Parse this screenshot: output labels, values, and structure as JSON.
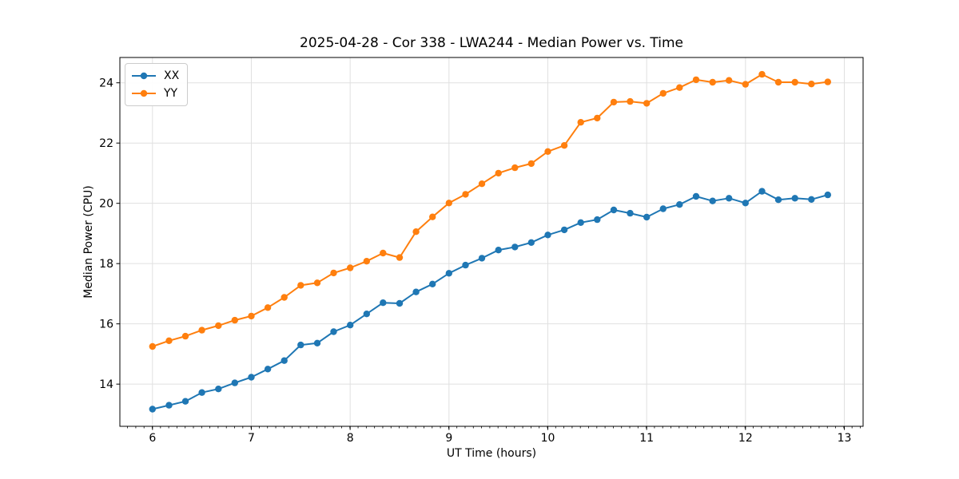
{
  "chart_data": {
    "type": "line",
    "title": "2025-04-28 - Cor 338 - LWA244 - Median Power vs. Time",
    "xlabel": "UT Time (hours)",
    "ylabel": "Median Power (CPU)",
    "xlim": [
      5.67,
      13.19
    ],
    "ylim": [
      12.6,
      24.84
    ],
    "xticks": [
      6,
      7,
      8,
      9,
      10,
      11,
      12,
      13
    ],
    "yticks": [
      14,
      16,
      18,
      20,
      22,
      24
    ],
    "x_minor_tick_step": 0.0833,
    "grid": true,
    "grid_color": "#e0e0e0",
    "legend_position": "upper left",
    "x": [
      6.0,
      6.167,
      6.333,
      6.5,
      6.667,
      6.833,
      7.0,
      7.167,
      7.333,
      7.5,
      7.667,
      7.833,
      8.0,
      8.167,
      8.333,
      8.5,
      8.667,
      8.833,
      9.0,
      9.167,
      9.333,
      9.5,
      9.667,
      9.833,
      10.0,
      10.167,
      10.333,
      10.5,
      10.667,
      10.833,
      11.0,
      11.167,
      11.333,
      11.5,
      11.667,
      11.833,
      12.0,
      12.167,
      12.333,
      12.5,
      12.667,
      12.833
    ],
    "series": [
      {
        "name": "XX",
        "color": "#1f77b4",
        "values": [
          13.17,
          13.3,
          13.43,
          13.72,
          13.84,
          14.04,
          14.23,
          14.5,
          14.78,
          15.3,
          15.36,
          15.74,
          15.96,
          16.33,
          16.7,
          16.68,
          17.06,
          17.32,
          17.68,
          17.95,
          18.18,
          18.45,
          18.55,
          18.7,
          18.95,
          19.12,
          19.36,
          19.46,
          19.78,
          19.67,
          19.54,
          19.82,
          19.96,
          20.23,
          20.08,
          20.17,
          20.01,
          20.4,
          20.12,
          20.17,
          20.13,
          20.28
        ]
      },
      {
        "name": "YY",
        "color": "#ff7f0e",
        "values": [
          15.25,
          15.44,
          15.59,
          15.79,
          15.94,
          16.12,
          16.26,
          16.54,
          16.88,
          17.28,
          17.36,
          17.69,
          17.86,
          18.08,
          18.35,
          18.2,
          19.06,
          19.55,
          20.01,
          20.3,
          20.65,
          21.0,
          21.18,
          21.32,
          21.72,
          21.92,
          22.69,
          22.83,
          23.36,
          23.38,
          23.32,
          23.65,
          23.84,
          24.1,
          24.02,
          24.08,
          23.95,
          24.28,
          24.02,
          24.02,
          23.96,
          24.03
        ]
      }
    ]
  }
}
